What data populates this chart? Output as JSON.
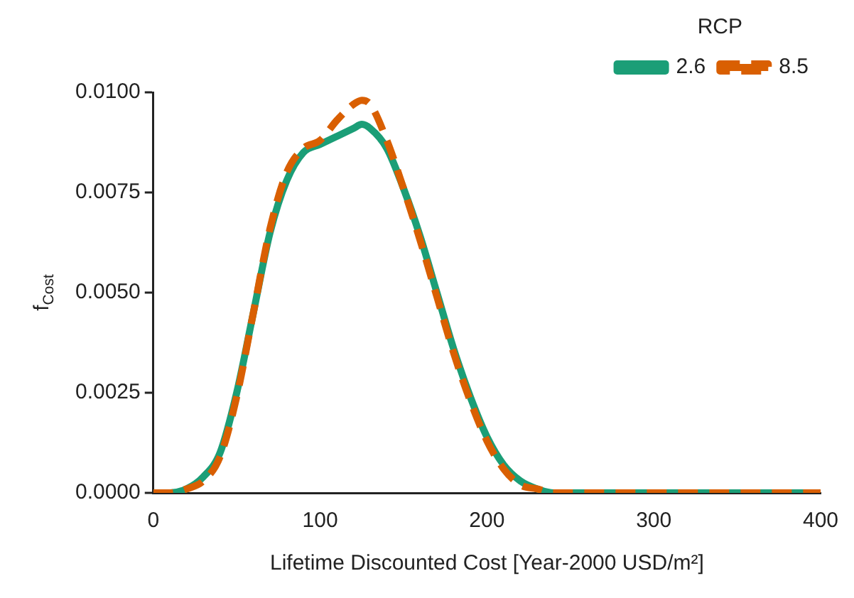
{
  "chart_data": {
    "type": "line",
    "xlabel": "Lifetime Discounted Cost [Year-2000 USD/m²]",
    "ylabel": "f$_{Cost}$",
    "legend_title": "RCP",
    "legend": "top right",
    "grid": false,
    "marker": "none",
    "xlim": [
      0,
      400
    ],
    "xticks": [
      0,
      100,
      200,
      300,
      400
    ],
    "ylim": [
      0,
      0.01
    ],
    "yticks": [
      {
        "value": 0,
        "label": "0.0000"
      },
      {
        "value": 0.0025,
        "label": "0.0025"
      },
      {
        "value": 0.005,
        "label": "0.0050"
      },
      {
        "value": 0.0075,
        "label": "0.0075"
      },
      {
        "value": 0.01,
        "label": "0.0100"
      }
    ],
    "series": [
      {
        "name": "2.6",
        "color": "#1b9e77",
        "line_style": "solid",
        "x": [
          0,
          10,
          20,
          30,
          40,
          50,
          60,
          70,
          80,
          90,
          100,
          110,
          120,
          125,
          130,
          140,
          150,
          160,
          170,
          180,
          190,
          200,
          210,
          220,
          230,
          240,
          260,
          300,
          350,
          400
        ],
        "values": [
          0,
          0,
          0.0001,
          0.0004,
          0.001,
          0.0025,
          0.0045,
          0.0065,
          0.0078,
          0.0085,
          0.0087,
          0.0089,
          0.0091,
          0.0092,
          0.0091,
          0.0086,
          0.0076,
          0.0064,
          0.005,
          0.0036,
          0.0024,
          0.0014,
          0.0007,
          0.0003,
          0.0001,
          0,
          0,
          0,
          0,
          0
        ]
      },
      {
        "name": "8.5",
        "color": "#d95f02",
        "line_style": "dashed",
        "x": [
          0,
          10,
          20,
          30,
          40,
          50,
          60,
          70,
          80,
          90,
          100,
          110,
          120,
          125,
          130,
          140,
          150,
          160,
          170,
          180,
          190,
          200,
          210,
          220,
          230,
          240,
          260,
          300,
          350,
          400
        ],
        "values": [
          0,
          0,
          0.0001,
          0.0003,
          0.0009,
          0.0024,
          0.0045,
          0.0066,
          0.008,
          0.0086,
          0.0088,
          0.0093,
          0.0097,
          0.0098,
          0.0097,
          0.0088,
          0.0076,
          0.0063,
          0.0049,
          0.0035,
          0.0023,
          0.0013,
          0.0006,
          0.0002,
          0.0001,
          0,
          0,
          0,
          0,
          0
        ]
      }
    ]
  }
}
